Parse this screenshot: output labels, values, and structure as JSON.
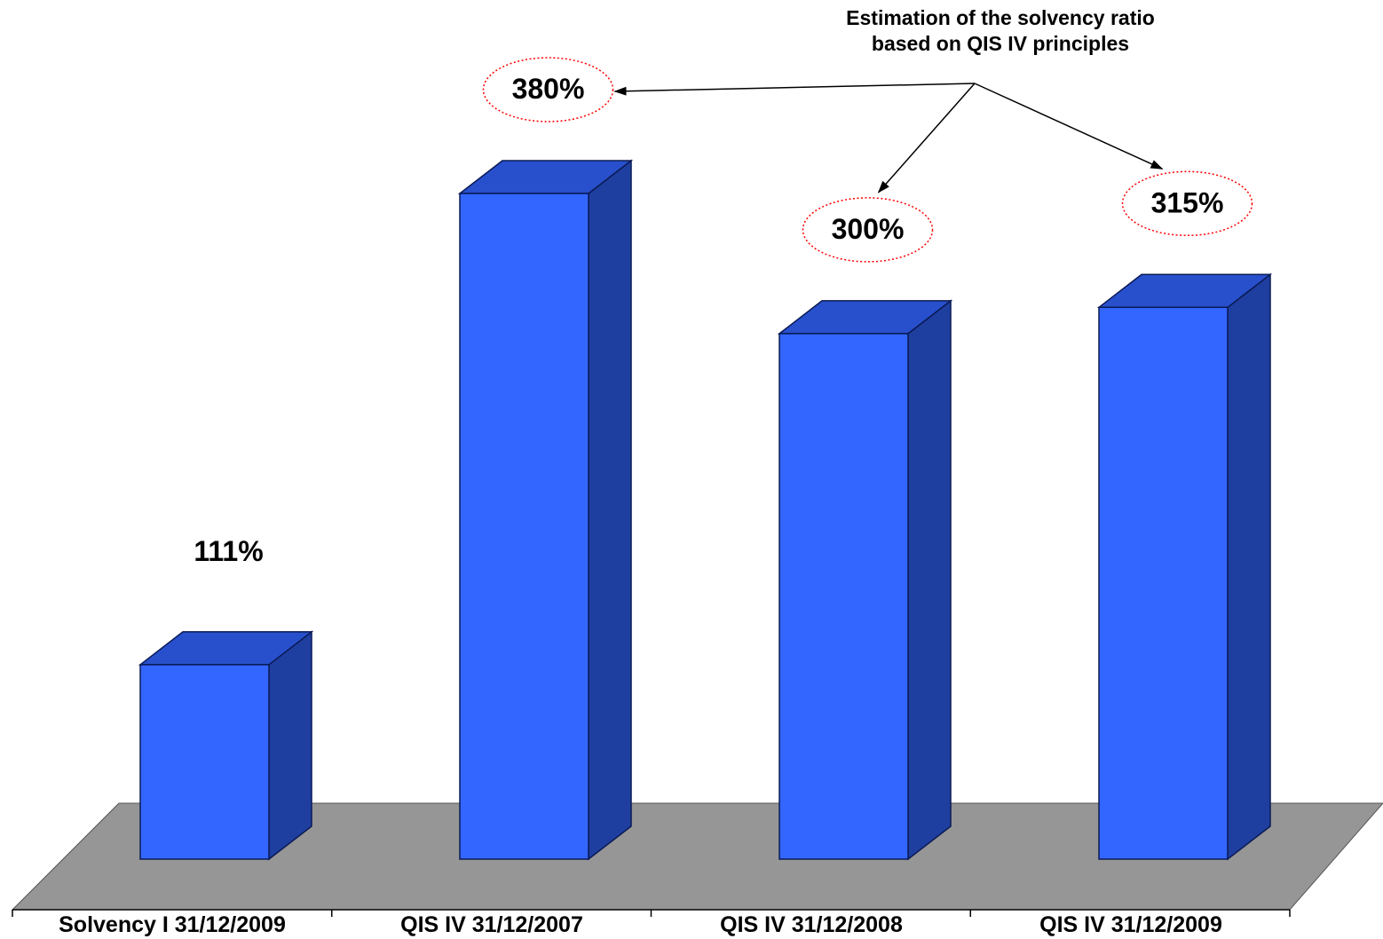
{
  "chart_data": {
    "type": "bar",
    "style": "3d-column",
    "categories": [
      "Solvency I  31/12/2009",
      "QIS IV 31/12/2007",
      "QIS IV 31/12/2008",
      "QIS IV 31/12/2009"
    ],
    "values": [
      111,
      380,
      300,
      315
    ],
    "value_labels": [
      "111%",
      "380%",
      "300%",
      "315%"
    ],
    "highlighted": [
      false,
      true,
      true,
      true
    ],
    "ylim": [
      0,
      400
    ],
    "grid": false,
    "legend": "none",
    "annotation": {
      "lines": [
        "Estimation of  the solvency ratio",
        "based on QIS IV principles"
      ],
      "points_to": [
        1,
        2,
        3
      ]
    },
    "colors": {
      "bar_front": "#3366ff",
      "bar_top": "#2850cc",
      "bar_side": "#1f3fa0",
      "floor": "#969696",
      "highlight_ellipse": "#ff0000"
    }
  }
}
